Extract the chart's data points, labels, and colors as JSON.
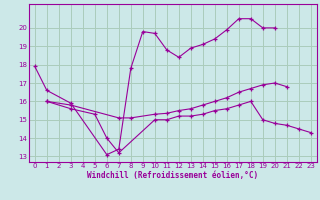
{
  "xlabel": "Windchill (Refroidissement éolien,°C)",
  "bg_color": "#cce8e8",
  "grid_color": "#aaccbb",
  "line_color": "#990099",
  "ylim": [
    13,
    21
  ],
  "xlim": [
    -0.5,
    23.5
  ],
  "yticks": [
    13,
    14,
    15,
    16,
    17,
    18,
    19,
    20
  ],
  "xticks": [
    0,
    1,
    2,
    3,
    4,
    5,
    6,
    7,
    8,
    9,
    10,
    11,
    12,
    13,
    14,
    15,
    16,
    17,
    18,
    19,
    20,
    21,
    22,
    23
  ],
  "line1_x": [
    0,
    1,
    3,
    6,
    7,
    8,
    9,
    10,
    11,
    12,
    13,
    14,
    15,
    16,
    17,
    18,
    19,
    20
  ],
  "line1_y": [
    17.9,
    16.6,
    15.9,
    13.1,
    13.4,
    17.8,
    19.8,
    19.7,
    18.8,
    18.4,
    18.9,
    19.1,
    19.4,
    19.9,
    20.5,
    20.5,
    20.0,
    20.0
  ],
  "line2_x": [
    1,
    3,
    7,
    8,
    10,
    11,
    12,
    13,
    14,
    15,
    16,
    17,
    18,
    19,
    20,
    21
  ],
  "line2_y": [
    16.0,
    15.8,
    15.1,
    15.1,
    15.3,
    15.35,
    15.5,
    15.6,
    15.8,
    16.0,
    16.2,
    16.5,
    16.7,
    16.9,
    17.0,
    16.8
  ],
  "line3_x": [
    1,
    3,
    5,
    6,
    7,
    10,
    11,
    12,
    13,
    14,
    15,
    16,
    17,
    18,
    19,
    20,
    21,
    22,
    23
  ],
  "line3_y": [
    16.0,
    15.6,
    15.3,
    14.0,
    13.2,
    15.0,
    15.0,
    15.2,
    15.2,
    15.3,
    15.5,
    15.6,
    15.8,
    16.0,
    15.0,
    14.8,
    14.7,
    14.5,
    14.3
  ]
}
